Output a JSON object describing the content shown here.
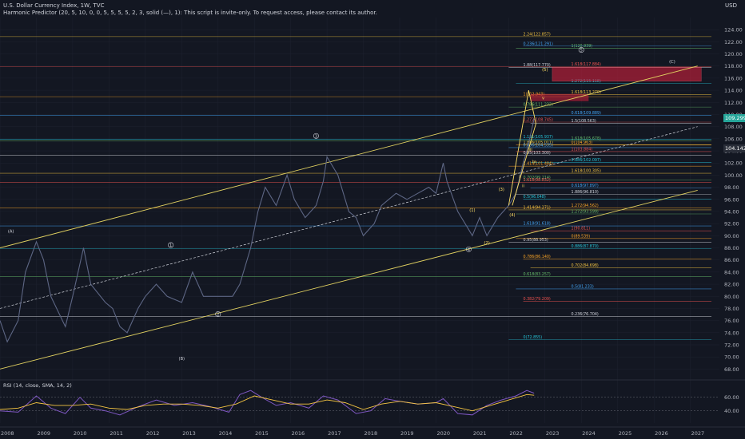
{
  "header": {
    "title": "U.S. Dollar Currency Index, 1W, TVC",
    "indicator": "Harmonic Predictor (20, 5, 10, 0, 0, 5, 5, 5, 5, 2, 3, solid (—), 1): This script is invite-only. To request access, please contact its author.",
    "rsi_label": "RSI (14, close, SMA, 14, 2)",
    "currency": "USD"
  },
  "tags": {
    "last_price": "104.142",
    "current_price": "109.299"
  },
  "colors": {
    "background": "#131722",
    "price": "#5d6684",
    "rsi": "#7e57c2",
    "rsi_ma": "#f5c542",
    "channel": "#e0d060",
    "projection": "#ffe066",
    "zone": "#c0203a",
    "grid": "#1e2230"
  },
  "chart_data": [
    {
      "type": "line",
      "name": "price",
      "x_axis": {
        "ticks": [
          "2008",
          "2009",
          "2010",
          "2011",
          "2012",
          "2013",
          "2014",
          "2015",
          "2016",
          "2017",
          "2018",
          "2019",
          "2020",
          "2021",
          "2022",
          "2023",
          "2024",
          "2025",
          "2026",
          "2027"
        ],
        "range": [
          2008.0,
          2027.8
        ]
      },
      "y_axis": {
        "ticks": [
          68,
          70,
          72,
          74,
          76,
          78,
          80,
          82,
          84,
          86,
          88,
          90,
          92,
          94,
          96,
          98,
          100,
          102,
          104,
          106,
          108,
          110,
          112,
          114,
          116,
          118,
          120,
          122,
          124
        ],
        "range": [
          66.6,
          126.0
        ]
      },
      "series": [
        {
          "x": [
            2008.0,
            2008.2,
            2008.5,
            2008.7,
            2009.0,
            2009.2,
            2009.4,
            2009.8,
            2010.0,
            2010.3,
            2010.5,
            2010.9,
            2011.1,
            2011.3,
            2011.5,
            2011.8,
            2012.0,
            2012.3,
            2012.6,
            2013.0,
            2013.3,
            2013.6,
            2014.0,
            2014.4,
            2014.6,
            2014.9,
            2015.1,
            2015.3,
            2015.6,
            2015.9,
            2016.1,
            2016.4,
            2016.7,
            2016.9,
            2017.0,
            2017.3,
            2017.6,
            2017.8,
            2018.0,
            2018.3,
            2018.5,
            2018.9,
            2019.2,
            2019.5,
            2019.8,
            2020.0,
            2020.2,
            2020.3,
            2020.6,
            2020.9,
            2021.0,
            2021.2,
            2021.4,
            2021.7,
            2022.0,
            2022.2,
            2022.4,
            2022.5,
            2022.7
          ],
          "y": [
            76,
            72.5,
            76,
            84,
            89,
            86,
            80,
            75,
            80,
            88,
            82,
            79,
            78,
            75,
            74,
            78,
            80,
            82,
            80,
            79,
            84,
            80,
            80,
            80,
            82,
            88,
            94,
            98,
            95,
            100,
            96,
            93,
            95,
            99,
            103,
            100,
            94,
            93,
            90,
            92,
            95,
            97,
            96,
            97,
            98,
            97,
            102,
            99,
            94,
            91,
            90,
            93,
            90,
            93,
            95,
            97,
            102,
            104,
            109.3
          ]
        }
      ],
      "levels": [
        "2.24(122.857)",
        "1(120.939)",
        "0.236(121.291)",
        "1.618(117.884)",
        "1.88(117.770)",
        "1.272(115.118)",
        "1(112.943)",
        "1.618(113.270)",
        "0.786(111.232)",
        "0.618(109.889)",
        "1.272(108.745)",
        "1.5(108.563)",
        "1.131(105.937)",
        "0(104.963)",
        "1.886(105.011)",
        "1.618(105.678)",
        "0.886(104.535)",
        "1(103.884)",
        "0.95(103.300)",
        "0.886(102.097)",
        "1.414(101.484)",
        "1.618(100.305)",
        "0.702(99.214)",
        "0.618(97.897)",
        "1.618(98.832)",
        "1.886(96.810)",
        "0.5(96.048)",
        "1.272(94.562)",
        "1.414(94.271)",
        "1.272(93.599)",
        "1.618(91.618)",
        "1(90.811)",
        "0.95(88.953)",
        "0.886(87.870)",
        "0.786(86.140)",
        "0.702(84.698)",
        "0.618(83.257)",
        "0.5(81.233)",
        "0.382(79.209)",
        "0.236(76.704)",
        "0(72.855)",
        "0(89.539)"
      ],
      "wave_labels": [
        "(A)",
        "(B)",
        "(C)",
        "1",
        "2",
        "3",
        "4",
        "5",
        "(1)",
        "(2)",
        "(3)",
        "(4)",
        "(5)",
        "i",
        "ii",
        "iii",
        "iv",
        "v"
      ]
    },
    {
      "type": "line",
      "name": "RSI (14, close, SMA, 14, 2)",
      "y_axis": {
        "ticks": [
          40.0,
          60.0
        ],
        "range": [
          22,
          75
        ]
      },
      "series": [
        {
          "name": "RSI",
          "x": [
            2008.0,
            2008.5,
            2009.0,
            2009.4,
            2009.8,
            2010.2,
            2010.5,
            2010.9,
            2011.3,
            2011.8,
            2012.3,
            2012.8,
            2013.3,
            2013.8,
            2014.3,
            2014.6,
            2014.9,
            2015.2,
            2015.6,
            2016.0,
            2016.5,
            2016.9,
            2017.3,
            2017.8,
            2018.2,
            2018.6,
            2019.0,
            2019.5,
            2020.0,
            2020.2,
            2020.6,
            2021.0,
            2021.4,
            2021.8,
            2022.2,
            2022.5,
            2022.7
          ],
          "y": [
            40,
            38,
            62,
            44,
            36,
            60,
            44,
            40,
            34,
            46,
            56,
            48,
            52,
            46,
            38,
            64,
            70,
            60,
            48,
            52,
            44,
            62,
            56,
            36,
            40,
            58,
            54,
            50,
            52,
            58,
            36,
            34,
            48,
            56,
            62,
            70,
            66
          ]
        },
        {
          "name": "RSI-based MA",
          "x": [
            2008.0,
            2008.5,
            2009.0,
            2009.5,
            2010.0,
            2010.5,
            2011.0,
            2011.5,
            2012.0,
            2012.5,
            2013.0,
            2013.5,
            2014.0,
            2014.5,
            2015.0,
            2015.5,
            2016.0,
            2016.5,
            2017.0,
            2017.5,
            2018.0,
            2018.5,
            2019.0,
            2019.5,
            2020.0,
            2020.5,
            2021.0,
            2021.5,
            2022.0,
            2022.5,
            2022.7
          ],
          "y": [
            42,
            44,
            52,
            48,
            48,
            50,
            44,
            42,
            48,
            50,
            50,
            48,
            44,
            50,
            62,
            56,
            50,
            50,
            56,
            52,
            42,
            50,
            54,
            50,
            52,
            46,
            40,
            48,
            56,
            64,
            63
          ]
        }
      ]
    }
  ]
}
